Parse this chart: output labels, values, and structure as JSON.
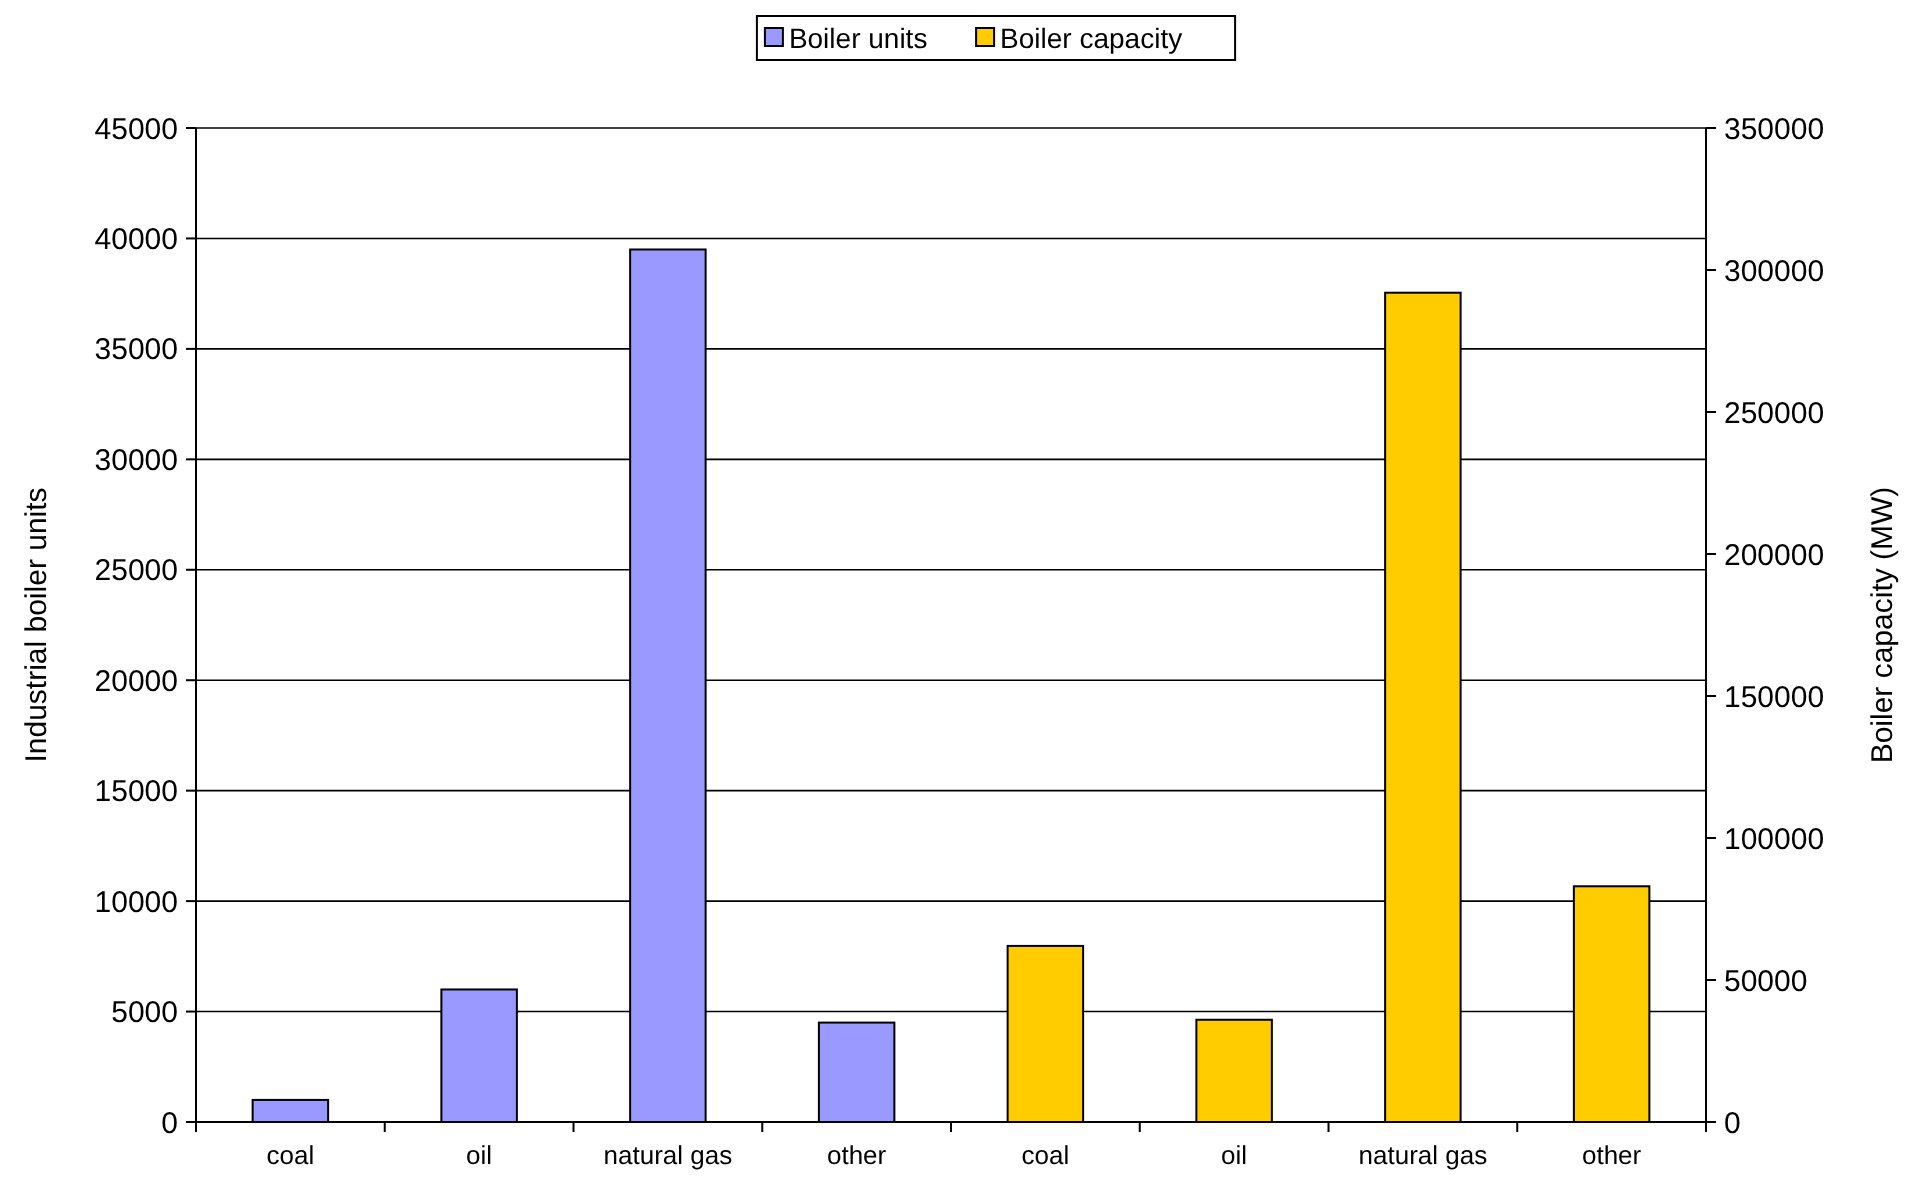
{
  "chart_data": [
    {
      "type": "bar",
      "categories": [
        "coal",
        "oil",
        "natural gas",
        "other"
      ],
      "series": [
        {
          "name": "Boiler units",
          "color": "#9999ff",
          "values": [
            1000,
            6000,
            39500,
            4500
          ]
        }
      ],
      "ylabel": "Industrial boiler units",
      "ylim": [
        0,
        45000
      ],
      "yticks": [
        0,
        5000,
        10000,
        15000,
        20000,
        25000,
        30000,
        35000,
        40000,
        45000
      ],
      "grid": "y",
      "legend": "top"
    },
    {
      "type": "bar",
      "categories": [
        "coal",
        "oil",
        "natural gas",
        "other"
      ],
      "series": [
        {
          "name": "Boiler capacity",
          "color": "#ffcc00",
          "axis": "y2",
          "values": [
            62000,
            36000,
            292000,
            83000
          ]
        }
      ],
      "y2label": "Boiler capacity (MW)",
      "y2lim": [
        0,
        350000
      ],
      "y2ticks": [
        0,
        50000,
        100000,
        150000,
        200000,
        250000,
        300000,
        350000
      ],
      "legend": "top"
    }
  ]
}
